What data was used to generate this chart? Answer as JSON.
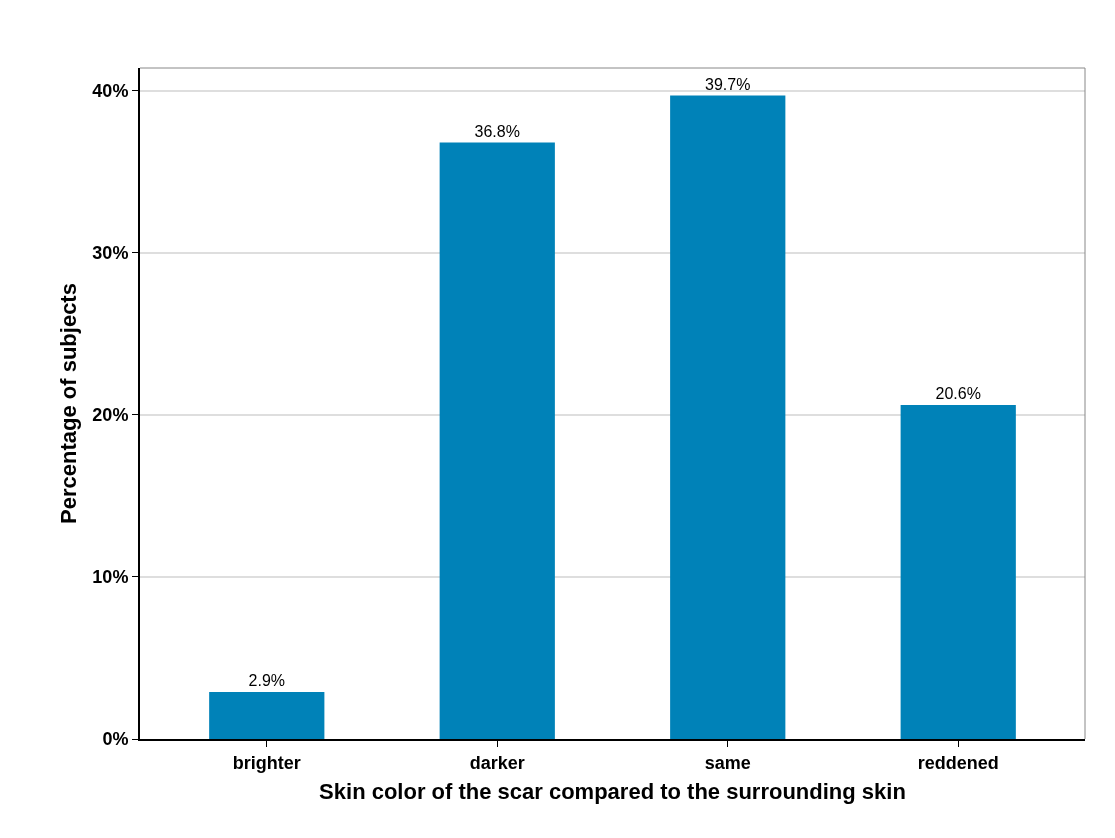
{
  "chart_data": {
    "type": "bar",
    "xlabel": "Skin color of the scar compared to the surrounding skin",
    "ylabel": "Percentage of subjects",
    "categories": [
      "brighter",
      "darker",
      "same",
      "reddened"
    ],
    "values": [
      2.9,
      36.8,
      39.7,
      20.6
    ],
    "value_labels": [
      "2.9%",
      "36.8%",
      "39.7%",
      "20.6%"
    ],
    "color": "#0082b8",
    "ylim": [
      0,
      41.4
    ],
    "yticks": [
      {
        "value": 0,
        "label": "0%"
      },
      {
        "value": 10,
        "label": "10%"
      },
      {
        "value": 20,
        "label": "20%"
      },
      {
        "value": 30,
        "label": "30%"
      },
      {
        "value": 40,
        "label": "40%"
      }
    ],
    "grid": "y"
  }
}
